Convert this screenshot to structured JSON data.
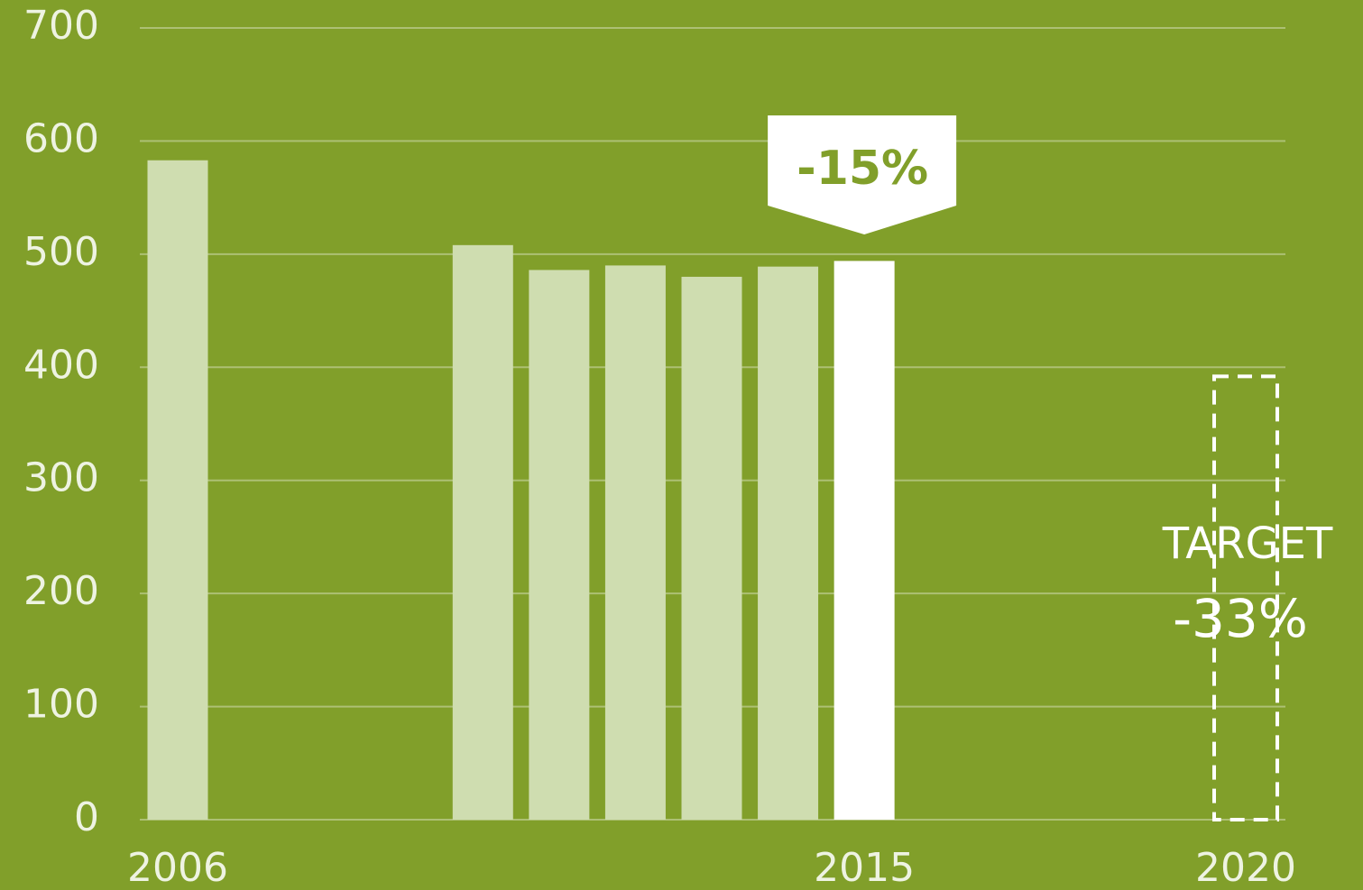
{
  "chart_data": {
    "type": "bar",
    "categories": [
      "2006",
      null,
      null,
      null,
      null,
      null,
      null,
      null,
      null,
      "2015",
      null,
      null,
      null,
      null,
      "2020"
    ],
    "values": [
      583,
      null,
      null,
      null,
      508,
      486,
      490,
      480,
      489,
      494,
      null,
      null,
      null,
      null,
      392
    ],
    "colors": [
      "#cfddb0",
      null,
      null,
      null,
      "#cfddb0",
      "#cfddb0",
      "#cfddb0",
      "#cfddb0",
      "#cfddb0",
      "#ffffff",
      null,
      null,
      null,
      null,
      "#ffffff"
    ],
    "dashed": [
      false,
      false,
      false,
      false,
      false,
      false,
      false,
      false,
      false,
      false,
      false,
      false,
      false,
      false,
      true
    ],
    "ylim": [
      0,
      700
    ],
    "yticks": [
      0,
      100,
      200,
      300,
      400,
      500,
      600,
      700
    ],
    "grid": true,
    "annotations": [
      "-15%",
      "TARGET",
      "-33%"
    ]
  }
}
